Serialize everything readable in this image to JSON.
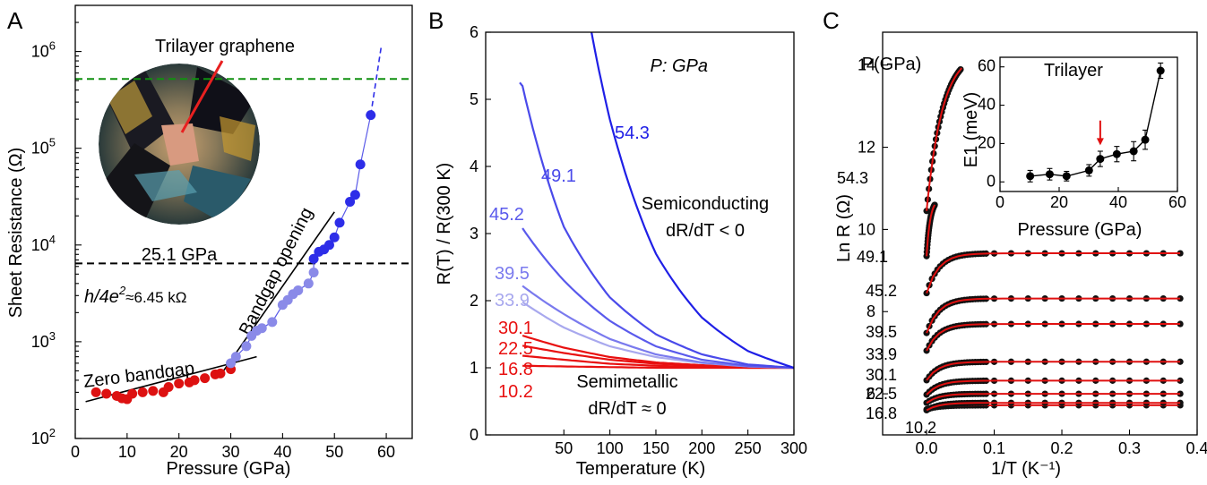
{
  "panels": {
    "a": "A",
    "b": "B",
    "c": "C"
  },
  "chart_data": [
    {
      "type": "scatter",
      "panel": "A",
      "xlabel": "Pressure (GPa)",
      "ylabel": "Sheet Resistance (Ω)",
      "xlim": [
        0,
        65
      ],
      "ylim": [
        100,
        3000000
      ],
      "yscale": "log",
      "x_ticks": [
        0,
        10,
        20,
        30,
        40,
        50,
        60
      ],
      "y_ticks": [
        {
          "value": 100,
          "base": "10",
          "exp": "2"
        },
        {
          "value": 1000,
          "base": "10",
          "exp": "3"
        },
        {
          "value": 10000,
          "base": "10",
          "exp": "4"
        },
        {
          "value": 100000,
          "base": "10",
          "exp": "5"
        },
        {
          "value": 1000000,
          "base": "10",
          "exp": "6"
        }
      ],
      "annotations": {
        "inset_title": "Trilayer graphene",
        "inset_pressure": "25.1 GPa",
        "quantum_label": "h/4e",
        "quantum_sup": "2",
        "quantum_value": "≈6.45 kΩ",
        "zero_gap": "Zero bandgap",
        "gap_opening": "Bandgap opening"
      },
      "colors": {
        "zero_gap": "#dd1111",
        "gap": "#2d2de8",
        "light_gap": "#8a8ae8",
        "green_line": "#109010"
      },
      "reference_lines": [
        {
          "y": 6450,
          "color": "#000000",
          "style": "dashed"
        },
        {
          "y": 520000,
          "color": "#109010",
          "style": "dashed"
        }
      ],
      "series": [
        {
          "color": "#dd1111",
          "points": [
            [
              4,
              300
            ],
            [
              6,
              290
            ],
            [
              8,
              275
            ],
            [
              9,
              260
            ],
            [
              10,
              255
            ],
            [
              11,
              290
            ],
            [
              13,
              300
            ],
            [
              15,
              310
            ],
            [
              17,
              300
            ],
            [
              18,
              340
            ],
            [
              20,
              370
            ],
            [
              22,
              380
            ],
            [
              23,
              400
            ],
            [
              25,
              420
            ],
            [
              27,
              460
            ],
            [
              28,
              470
            ],
            [
              30,
              520
            ]
          ]
        },
        {
          "color": "#8a8ae8",
          "points": [
            [
              30,
              600
            ],
            [
              31,
              700
            ],
            [
              33,
              900
            ],
            [
              34,
              1150
            ],
            [
              35,
              1300
            ],
            [
              36,
              1380
            ],
            [
              38,
              1600
            ],
            [
              40,
              2400
            ],
            [
              41,
              2700
            ],
            [
              42,
              3100
            ],
            [
              43,
              3400
            ],
            [
              45,
              4000
            ],
            [
              46,
              5200
            ]
          ]
        },
        {
          "color": "#2d2de8",
          "points": [
            [
              46,
              7200
            ],
            [
              47,
              8500
            ],
            [
              48,
              9000
            ],
            [
              49,
              10000
            ],
            [
              50,
              12000
            ],
            [
              51,
              17000
            ],
            [
              53,
              28000
            ],
            [
              54,
              33000
            ],
            [
              55,
              68000
            ],
            [
              57,
              220000
            ]
          ]
        }
      ],
      "fits": [
        {
          "x": [
            2,
            35
          ],
          "y": [
            240,
            700
          ],
          "color": "#000000"
        },
        {
          "x": [
            28,
            50
          ],
          "y": [
            450,
            22000
          ],
          "color": "#000000"
        }
      ],
      "extrapolation": {
        "x": [
          57,
          59
        ],
        "y": [
          220000,
          1100000
        ],
        "color": "#2d2de8"
      }
    },
    {
      "type": "line",
      "panel": "B",
      "title": "P: GPa",
      "xlabel": "Temperature (K)",
      "ylabel": "R(T) / R(300 K)",
      "xlim": [
        -35,
        300
      ],
      "ylim": [
        0,
        6
      ],
      "x_ticks": [
        50,
        100,
        150,
        200,
        250,
        300
      ],
      "y_ticks": [
        0,
        1,
        2,
        3,
        4,
        5,
        6
      ],
      "annotations": {
        "semiconducting": "Semiconducting",
        "semiconducting_rule": "dR/dT < 0",
        "semimetallic": "Semimetallic",
        "semimetallic_rule": "dR/dT ≈ 0"
      },
      "series": [
        {
          "name": "10.2",
          "color": "#e81010",
          "T": [
            5,
            50,
            100,
            150,
            200,
            250,
            300
          ],
          "values": [
            1.03,
            1.02,
            1.01,
            1.0,
            1.0,
            1.0,
            1.0
          ]
        },
        {
          "name": "16.8",
          "color": "#e81010",
          "T": [
            5,
            50,
            100,
            150,
            200,
            250,
            300
          ],
          "values": [
            1.18,
            1.12,
            1.06,
            1.03,
            1.01,
            1.0,
            1.0
          ]
        },
        {
          "name": "22.5",
          "color": "#e81010",
          "T": [
            5,
            50,
            100,
            150,
            200,
            250,
            300
          ],
          "values": [
            1.33,
            1.22,
            1.12,
            1.06,
            1.03,
            1.01,
            1.0
          ]
        },
        {
          "name": "30.1",
          "color": "#e81010",
          "T": [
            5,
            50,
            100,
            150,
            200,
            250,
            300
          ],
          "values": [
            1.48,
            1.3,
            1.16,
            1.08,
            1.04,
            1.01,
            1.0
          ]
        },
        {
          "name": "33.9",
          "color": "#a8a8ee",
          "T": [
            5,
            50,
            100,
            150,
            200,
            250,
            300
          ],
          "values": [
            1.98,
            1.6,
            1.32,
            1.16,
            1.07,
            1.02,
            1.0
          ]
        },
        {
          "name": "39.5",
          "color": "#7a7aee",
          "T": [
            5,
            50,
            100,
            150,
            200,
            250,
            300
          ],
          "values": [
            2.22,
            1.8,
            1.43,
            1.2,
            1.08,
            1.02,
            1.0
          ]
        },
        {
          "name": "45.2",
          "color": "#5a5aec",
          "T": [
            5,
            50,
            100,
            150,
            200,
            250,
            300
          ],
          "values": [
            3.08,
            2.3,
            1.7,
            1.32,
            1.12,
            1.03,
            1.0
          ]
        },
        {
          "name": "49.1",
          "color": "#4a4aea",
          "T": [
            2,
            5,
            50,
            100,
            150,
            200,
            250,
            300
          ],
          "values": [
            5.25,
            5.2,
            3.1,
            2.05,
            1.5,
            1.2,
            1.05,
            1.0
          ]
        },
        {
          "name": "54.3",
          "color": "#1f1fe6",
          "T": [
            80,
            100,
            150,
            200,
            250,
            300
          ],
          "values": [
            6.0,
            4.7,
            2.7,
            1.75,
            1.25,
            1.0
          ]
        }
      ]
    },
    {
      "type": "scatter",
      "panel": "C",
      "title": "P(GPa)",
      "xlabel": "1/T (K⁻¹)",
      "ylabel": "Ln R (Ω)",
      "xlim": [
        -0.065,
        0.4
      ],
      "ylim": [
        5.0,
        14.8
      ],
      "x_ticks": [
        0.0,
        0.1,
        0.2,
        0.3,
        0.4
      ],
      "y_ticks": [
        6,
        8,
        10,
        12,
        14
      ],
      "fit_color": "#e01010",
      "series": [
        {
          "name": "10.2",
          "y_start": 5.62,
          "y_plateau": 5.72,
          "x_end": 0.375
        },
        {
          "name": "16.8",
          "y_start": 5.6,
          "y_plateau": 5.78,
          "x_end": 0.375
        },
        {
          "name": "22.5",
          "y_start": 5.78,
          "y_plateau": 6.0,
          "x_end": 0.375
        },
        {
          "name": "30.1",
          "y_start": 5.98,
          "y_plateau": 6.32,
          "x_end": 0.375
        },
        {
          "name": "33.9",
          "y_start": 6.33,
          "y_plateau": 6.78,
          "x_end": 0.375
        },
        {
          "name": "39.5",
          "y_start": 7.05,
          "y_plateau": 7.7,
          "x_end": 0.375
        },
        {
          "name": "45.2",
          "y_start": 7.48,
          "y_plateau": 8.32,
          "x_end": 0.375
        },
        {
          "name": "49.1",
          "y_start": 8.45,
          "y_plateau": 9.42,
          "x_end": 0.375
        },
        {
          "name": "54.3",
          "y_start": 9.35,
          "y_plateau": 10.75,
          "x_end": 0.012
        },
        {
          "name": "54.3-high",
          "y_start": 10.45,
          "y_plateau": 14.35,
          "x_end": 0.052
        }
      ],
      "labels": [
        {
          "text": "54.3",
          "y": 11.7
        },
        {
          "text": "49.1",
          "y": 9.4
        },
        {
          "text": "45.2",
          "y": 8.3
        },
        {
          "text": "39.5",
          "y": 7.6
        },
        {
          "text": "33.9",
          "y": 6.8
        },
        {
          "text": "30.1",
          "y": 6.3
        },
        {
          "text": "22.5",
          "y": 5.95
        },
        {
          "text": "16.8",
          "y": 5.55
        },
        {
          "text": "10.2",
          "y": 5.35
        }
      ],
      "inset": {
        "title": "Trilayer",
        "xlabel": "Pressure (GPa)",
        "ylabel": "E1 (meV)",
        "xlim": [
          0,
          60
        ],
        "ylim": [
          -5,
          65
        ],
        "x_ticks": [
          0,
          20,
          40,
          60
        ],
        "y_ticks": [
          0,
          20,
          40,
          60
        ],
        "arrow_at": 33.9,
        "x": [
          10.2,
          16.8,
          22.5,
          30.1,
          33.9,
          39.5,
          45.2,
          49.1,
          54.3
        ],
        "values": [
          3,
          4,
          3,
          6,
          12,
          14.5,
          16,
          22,
          58
        ],
        "errors": [
          3,
          3,
          2.5,
          3,
          4,
          4,
          5,
          5,
          4
        ]
      }
    }
  ]
}
